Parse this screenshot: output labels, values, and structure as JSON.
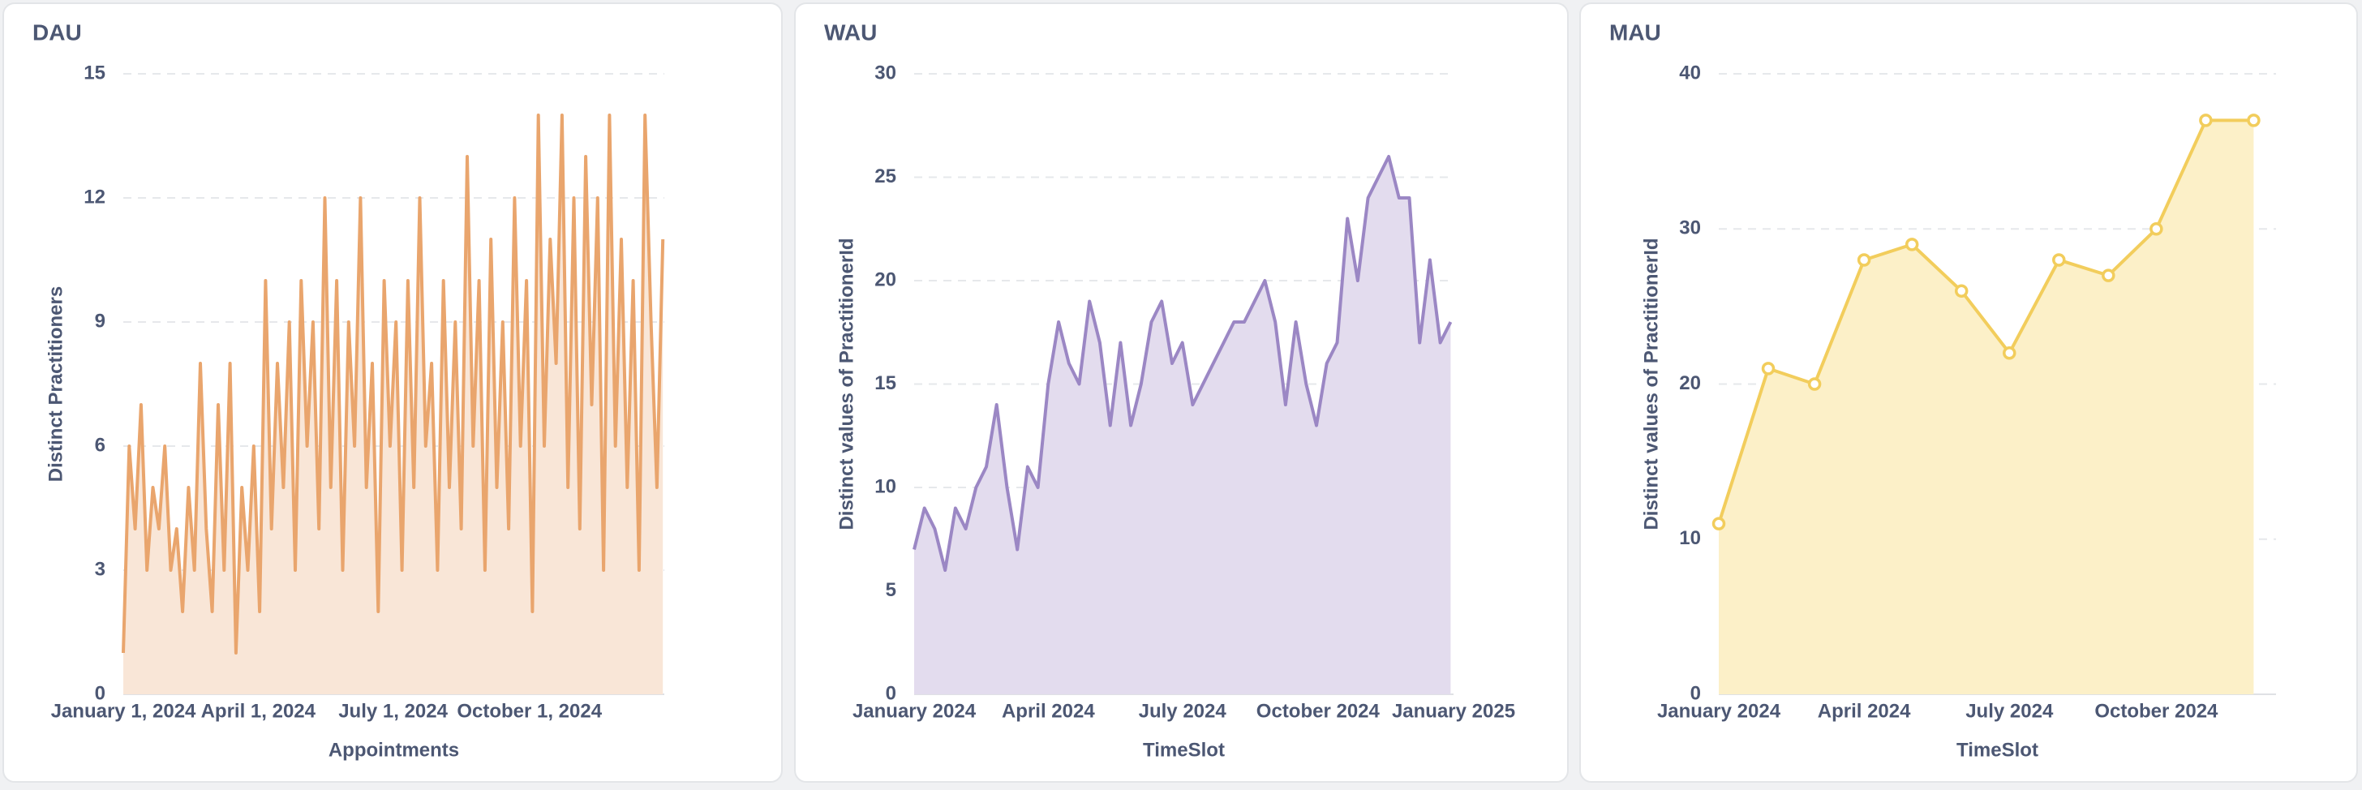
{
  "chart_data": [
    {
      "type": "area",
      "title": "DAU",
      "xlabel": "Appointments",
      "ylabel": "Distinct Practitioners",
      "color": "#e9a56d",
      "fill_color": "#f9e6d7",
      "markers": false,
      "grid": true,
      "x": [
        "2024-01-01",
        "2024-01-05",
        "2024-01-09",
        "2024-01-13",
        "2024-01-17",
        "2024-01-21",
        "2024-01-25",
        "2024-01-29",
        "2024-02-02",
        "2024-02-06",
        "2024-02-10",
        "2024-02-14",
        "2024-02-18",
        "2024-02-22",
        "2024-02-26",
        "2024-03-01",
        "2024-03-05",
        "2024-03-09",
        "2024-03-13",
        "2024-03-17",
        "2024-03-21",
        "2024-03-25",
        "2024-03-29",
        "2024-04-02",
        "2024-04-06",
        "2024-04-10",
        "2024-04-14",
        "2024-04-18",
        "2024-04-22",
        "2024-04-26",
        "2024-04-30",
        "2024-05-04",
        "2024-05-08",
        "2024-05-12",
        "2024-05-16",
        "2024-05-20",
        "2024-05-24",
        "2024-05-28",
        "2024-06-01",
        "2024-06-05",
        "2024-06-09",
        "2024-06-13",
        "2024-06-17",
        "2024-06-21",
        "2024-06-25",
        "2024-06-29",
        "2024-07-03",
        "2024-07-07",
        "2024-07-11",
        "2024-07-15",
        "2024-07-19",
        "2024-07-23",
        "2024-07-27",
        "2024-07-31",
        "2024-08-04",
        "2024-08-08",
        "2024-08-12",
        "2024-08-16",
        "2024-08-20",
        "2024-08-24",
        "2024-08-28",
        "2024-09-01",
        "2024-09-05",
        "2024-09-09",
        "2024-09-13",
        "2024-09-17",
        "2024-09-21",
        "2024-09-25",
        "2024-09-29",
        "2024-10-03",
        "2024-10-07",
        "2024-10-11",
        "2024-10-15",
        "2024-10-19",
        "2024-10-23",
        "2024-10-27",
        "2024-10-31",
        "2024-11-04",
        "2024-11-08",
        "2024-11-12",
        "2024-11-16",
        "2024-11-20",
        "2024-11-24",
        "2024-11-28",
        "2024-12-02",
        "2024-12-06",
        "2024-12-10",
        "2024-12-14",
        "2024-12-18",
        "2024-12-22",
        "2024-12-26",
        "2024-12-30"
      ],
      "values": [
        1,
        6,
        4,
        7,
        3,
        5,
        4,
        6,
        3,
        4,
        2,
        5,
        3,
        8,
        4,
        2,
        7,
        3,
        8,
        1,
        5,
        3,
        6,
        2,
        10,
        4,
        8,
        5,
        9,
        3,
        10,
        6,
        9,
        4,
        12,
        5,
        10,
        3,
        9,
        6,
        12,
        5,
        8,
        2,
        10,
        6,
        9,
        3,
        10,
        5,
        12,
        6,
        8,
        3,
        10,
        5,
        9,
        4,
        13,
        6,
        10,
        3,
        11,
        5,
        9,
        4,
        12,
        6,
        10,
        2,
        14,
        6,
        11,
        8,
        14,
        5,
        12,
        4,
        13,
        7,
        12,
        3,
        14,
        6,
        11,
        5,
        10,
        3,
        14,
        9,
        5,
        11
      ],
      "xlim": [
        "2024-01-01",
        "2024-12-31"
      ],
      "xticks": [
        {
          "value": "2024-01-01",
          "label": "January 1, 2024"
        },
        {
          "value": "2024-04-01",
          "label": "April 1, 2024"
        },
        {
          "value": "2024-07-01",
          "label": "July 1, 2024"
        },
        {
          "value": "2024-10-01",
          "label": "October 1, 2024"
        }
      ],
      "ylim": [
        0,
        15
      ],
      "yticks": [
        0,
        3,
        6,
        9,
        12,
        15
      ]
    },
    {
      "type": "area",
      "title": "WAU",
      "xlabel": "TimeSlot",
      "ylabel": "Distinct values of PractitionerId",
      "color": "#9b87c4",
      "fill_color": "#e3dcee",
      "markers": false,
      "grid": true,
      "x": [
        "2024-01-01",
        "2024-01-08",
        "2024-01-15",
        "2024-01-22",
        "2024-01-29",
        "2024-02-05",
        "2024-02-12",
        "2024-02-19",
        "2024-02-26",
        "2024-03-04",
        "2024-03-11",
        "2024-03-18",
        "2024-03-25",
        "2024-04-01",
        "2024-04-08",
        "2024-04-15",
        "2024-04-22",
        "2024-04-29",
        "2024-05-06",
        "2024-05-13",
        "2024-05-20",
        "2024-05-27",
        "2024-06-03",
        "2024-06-10",
        "2024-06-17",
        "2024-06-24",
        "2024-07-01",
        "2024-07-08",
        "2024-07-15",
        "2024-07-22",
        "2024-07-29",
        "2024-08-05",
        "2024-08-12",
        "2024-08-19",
        "2024-08-26",
        "2024-09-02",
        "2024-09-09",
        "2024-09-16",
        "2024-09-23",
        "2024-09-30",
        "2024-10-07",
        "2024-10-14",
        "2024-10-21",
        "2024-10-28",
        "2024-11-04",
        "2024-11-11",
        "2024-11-18",
        "2024-11-25",
        "2024-12-02",
        "2024-12-09",
        "2024-12-16",
        "2024-12-23",
        "2024-12-30"
      ],
      "values": [
        7,
        9,
        8,
        6,
        9,
        8,
        10,
        11,
        14,
        10,
        7,
        11,
        10,
        15,
        18,
        16,
        15,
        19,
        17,
        13,
        17,
        13,
        15,
        18,
        19,
        16,
        17,
        14,
        15,
        16,
        17,
        18,
        18,
        19,
        20,
        18,
        14,
        18,
        15,
        13,
        16,
        17,
        23,
        20,
        24,
        25,
        26,
        24,
        24,
        17,
        21,
        17,
        18
      ],
      "xlim": [
        "2024-01-01",
        "2025-01-01"
      ],
      "xticks": [
        {
          "value": "2024-01-01",
          "label": "January 2024"
        },
        {
          "value": "2024-04-01",
          "label": "April 2024"
        },
        {
          "value": "2024-07-01",
          "label": "July 2024"
        },
        {
          "value": "2024-10-01",
          "label": "October 2024"
        },
        {
          "value": "2025-01-01",
          "label": "January 2025"
        }
      ],
      "ylim": [
        0,
        30
      ],
      "yticks": [
        0,
        5,
        10,
        15,
        20,
        25,
        30
      ]
    },
    {
      "type": "area",
      "title": "MAU",
      "xlabel": "TimeSlot",
      "ylabel": "Distinct values of PractitionerId",
      "color": "#f2cd5c",
      "fill_color": "#fcf0c8",
      "markers": true,
      "grid": true,
      "x": [
        "2024-01-01",
        "2024-02-01",
        "2024-03-01",
        "2024-04-01",
        "2024-05-01",
        "2024-06-01",
        "2024-07-01",
        "2024-08-01",
        "2024-09-01",
        "2024-10-01",
        "2024-11-01",
        "2024-12-01"
      ],
      "values": [
        11,
        21,
        20,
        28,
        29,
        26,
        22,
        28,
        27,
        30,
        37,
        37
      ],
      "xlim": [
        "2024-01-01",
        "2024-12-15"
      ],
      "xticks": [
        {
          "value": "2024-01-01",
          "label": "January 2024"
        },
        {
          "value": "2024-04-01",
          "label": "April 2024"
        },
        {
          "value": "2024-07-01",
          "label": "July 2024"
        },
        {
          "value": "2024-10-01",
          "label": "October 2024"
        }
      ],
      "ylim": [
        0,
        40
      ],
      "yticks": [
        0,
        10,
        20,
        30,
        40
      ]
    }
  ]
}
